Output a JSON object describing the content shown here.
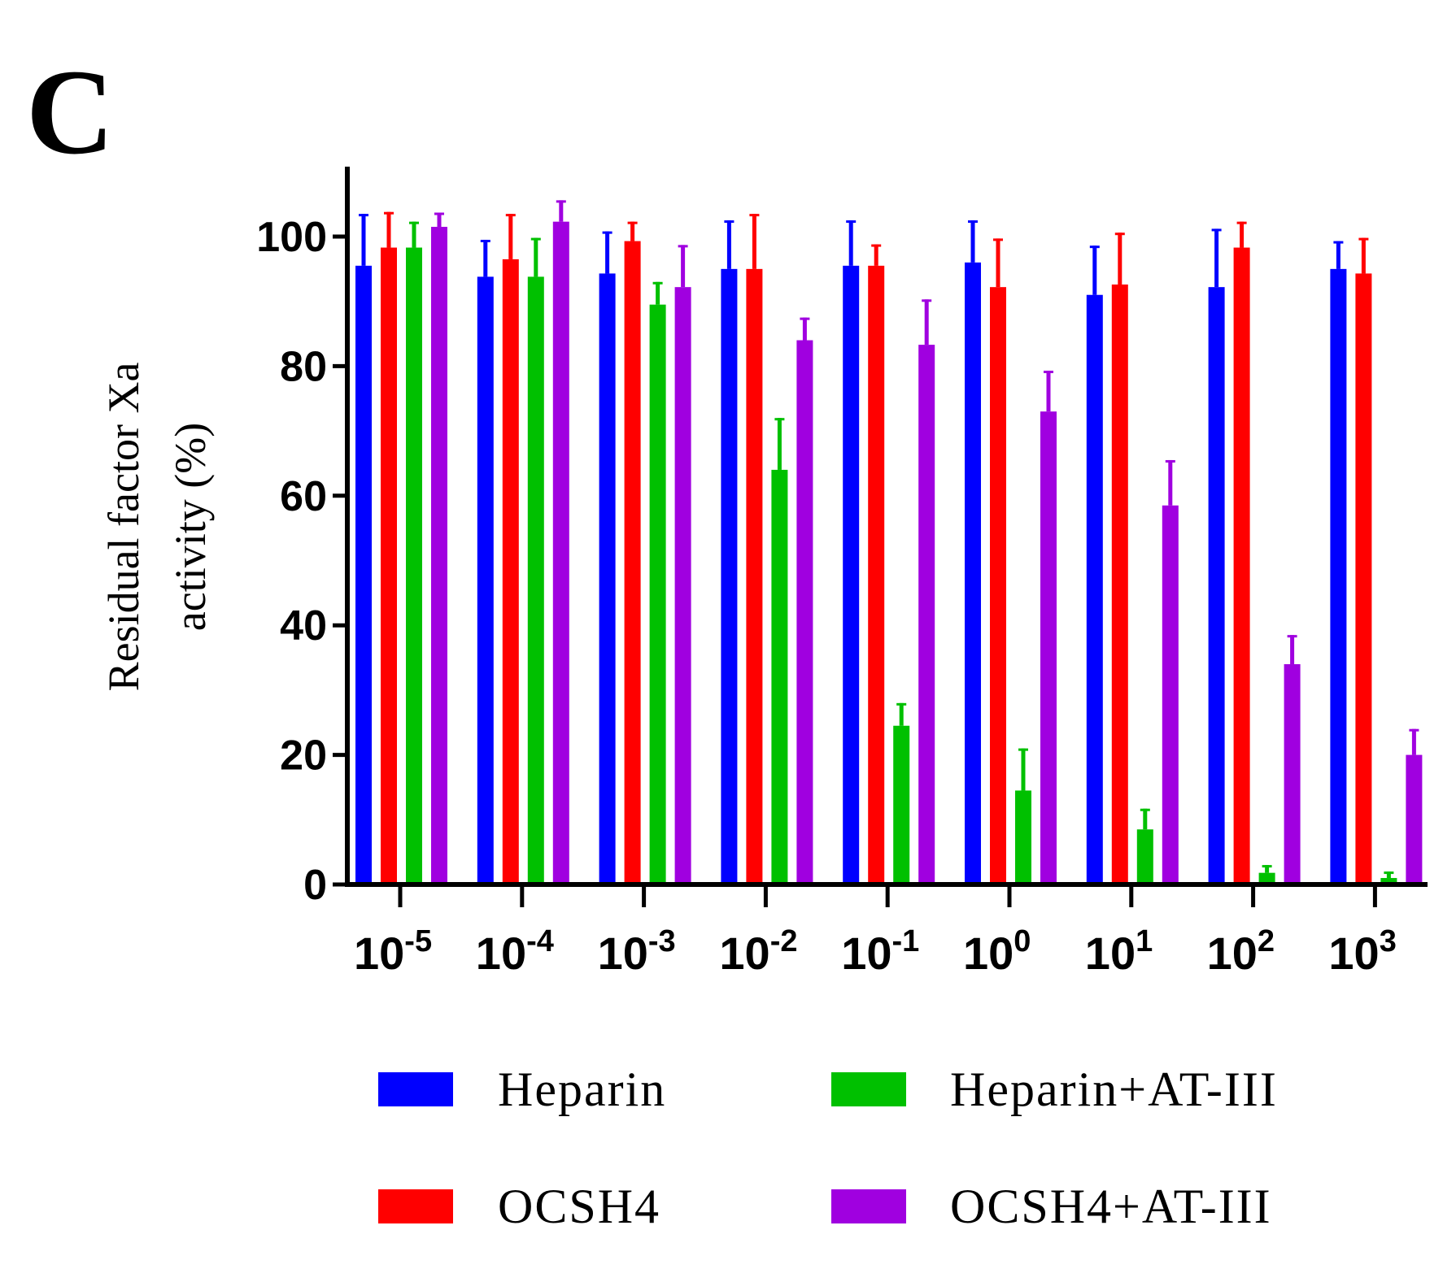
{
  "panel_label": "C",
  "chart_data": {
    "type": "bar",
    "title": "",
    "xlabel": "",
    "ylabel_lines": [
      "Residual factor Xa",
      "activity (%)"
    ],
    "ylim": [
      0,
      110
    ],
    "yticks": [
      0,
      20,
      40,
      60,
      80,
      100
    ],
    "categories": [
      {
        "base": "10",
        "exp": "-5"
      },
      {
        "base": "10",
        "exp": "-4"
      },
      {
        "base": "10",
        "exp": "-3"
      },
      {
        "base": "10",
        "exp": "-2"
      },
      {
        "base": "10",
        "exp": "-1"
      },
      {
        "base": "10",
        "exp": "0"
      },
      {
        "base": "10",
        "exp": "1"
      },
      {
        "base": "10",
        "exp": "2"
      },
      {
        "base": "10",
        "exp": "3"
      }
    ],
    "legend_position": "bottom",
    "series": [
      {
        "name": "Heparin",
        "color": "#0000ff",
        "values": [
          95.5,
          93.8,
          94.3,
          95,
          95.5,
          96,
          91,
          92.2,
          95
        ],
        "errors": [
          8,
          5.7,
          6.5,
          7.5,
          7,
          6.5,
          7.6,
          9,
          4.3
        ]
      },
      {
        "name": "OCSH4",
        "color": "#ff0000",
        "values": [
          98.3,
          96.5,
          99.3,
          95,
          95.5,
          92.2,
          92.6,
          98.3,
          94.3
        ],
        "errors": [
          5.5,
          7,
          3,
          8.5,
          3.3,
          7.5,
          8,
          4,
          5.5
        ]
      },
      {
        "name": "Heparin+AT-III",
        "color": "#00c000",
        "values": [
          98.3,
          93.8,
          89.5,
          64,
          24.5,
          14.5,
          8.5,
          1.8,
          1
        ],
        "errors": [
          4,
          6,
          3.5,
          8,
          3.5,
          6.5,
          3.2,
          1.2,
          1
        ]
      },
      {
        "name": "OCSH4+AT-III",
        "color": "#a000e0",
        "values": [
          101.5,
          102.3,
          92.2,
          84,
          83.3,
          73,
          58.5,
          34,
          20
        ],
        "errors": [
          2.2,
          3.3,
          6.5,
          3.5,
          7,
          6.3,
          7,
          4.5,
          4
        ]
      }
    ]
  }
}
